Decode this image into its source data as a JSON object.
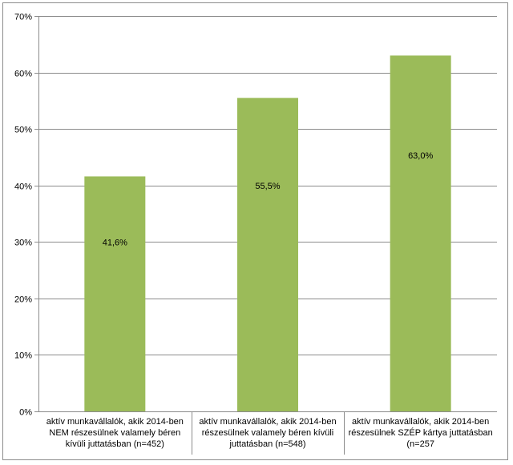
{
  "chart_data": {
    "type": "bar",
    "categories": [
      "aktív munkavállalók, akik 2014-ben NEM részesülnek valamely béren kívüli juttatásban (n=452)",
      "aktív munkavállalók, akik 2014-ben részesülnek valamely béren kívüli juttatásban (n=548)",
      "aktív munkavállalók, akik 2014-ben részesülnek SZÉP kártya juttatásban (n=257"
    ],
    "values": [
      41.6,
      55.5,
      63.0
    ],
    "data_labels": [
      "41,6%",
      "55,5%",
      "63,0%"
    ],
    "yticks": [
      0,
      10,
      20,
      30,
      40,
      50,
      60,
      70
    ],
    "ytick_labels": [
      "0%",
      "10%",
      "20%",
      "30%",
      "40%",
      "50%",
      "60%",
      "70%"
    ],
    "ylim": [
      0,
      70
    ],
    "grid": true,
    "legend": "none",
    "bar_color": "#9bbb59",
    "grid_color": "#8c8c8c",
    "title": "",
    "xlabel": "",
    "ylabel": ""
  }
}
